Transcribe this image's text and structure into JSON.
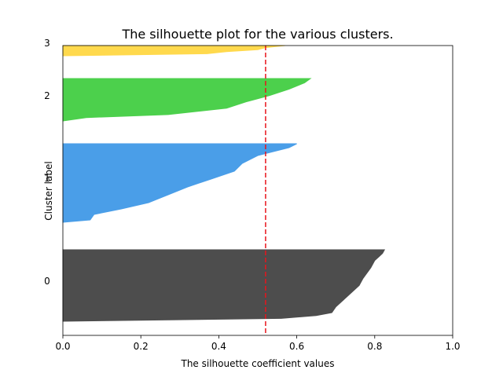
{
  "chart_data": {
    "type": "area",
    "title": "The silhouette plot for the various clusters.",
    "xlabel": "The silhouette coefficient values",
    "ylabel": "Cluster label",
    "xlim": [
      0,
      1
    ],
    "x_ticks": [
      "0.0",
      "0.2",
      "0.4",
      "0.6",
      "0.8",
      "1.0"
    ],
    "x_tick_values": [
      0,
      0.2,
      0.4,
      0.6,
      0.8,
      1.0
    ],
    "y_ticks": [
      "0",
      "1",
      "2",
      "3"
    ],
    "y_tick_values": [
      -2,
      -1,
      0,
      1
    ],
    "average_silhouette": 0.52,
    "average_line_color": "#e8141c",
    "grid": false,
    "series": [
      {
        "name": "0",
        "color": "#4d4d4d",
        "profile": [
          [
            0.0,
            0.825
          ],
          [
            0.05,
            0.82
          ],
          [
            0.1,
            0.81
          ],
          [
            0.15,
            0.8
          ],
          [
            0.25,
            0.79
          ],
          [
            0.4,
            0.77
          ],
          [
            0.5,
            0.76
          ],
          [
            0.6,
            0.74
          ],
          [
            0.7,
            0.72
          ],
          [
            0.8,
            0.7
          ],
          [
            0.88,
            0.69
          ],
          [
            0.92,
            0.65
          ],
          [
            0.96,
            0.56
          ],
          [
            1.0,
            0.0
          ]
        ]
      },
      {
        "name": "1",
        "color": "#4a9ee8",
        "profile": [
          [
            0.0,
            0.6
          ],
          [
            0.05,
            0.58
          ],
          [
            0.1,
            0.54
          ],
          [
            0.15,
            0.5
          ],
          [
            0.25,
            0.46
          ],
          [
            0.35,
            0.44
          ],
          [
            0.45,
            0.38
          ],
          [
            0.55,
            0.32
          ],
          [
            0.65,
            0.27
          ],
          [
            0.75,
            0.22
          ],
          [
            0.83,
            0.15
          ],
          [
            0.9,
            0.08
          ],
          [
            0.97,
            0.07
          ],
          [
            1.0,
            0.0
          ]
        ]
      },
      {
        "name": "2",
        "color": "#4cd04c",
        "profile": [
          [
            0.0,
            0.635
          ],
          [
            0.1,
            0.62
          ],
          [
            0.25,
            0.58
          ],
          [
            0.4,
            0.53
          ],
          [
            0.55,
            0.47
          ],
          [
            0.7,
            0.42
          ],
          [
            0.85,
            0.27
          ],
          [
            0.92,
            0.06
          ],
          [
            1.0,
            0.0
          ]
        ]
      },
      {
        "name": "3",
        "color": "#ffd94d",
        "profile": [
          [
            0.0,
            0.57
          ],
          [
            0.2,
            0.52
          ],
          [
            0.4,
            0.5
          ],
          [
            0.6,
            0.42
          ],
          [
            0.8,
            0.37
          ],
          [
            1.0,
            0.0
          ]
        ]
      }
    ]
  }
}
